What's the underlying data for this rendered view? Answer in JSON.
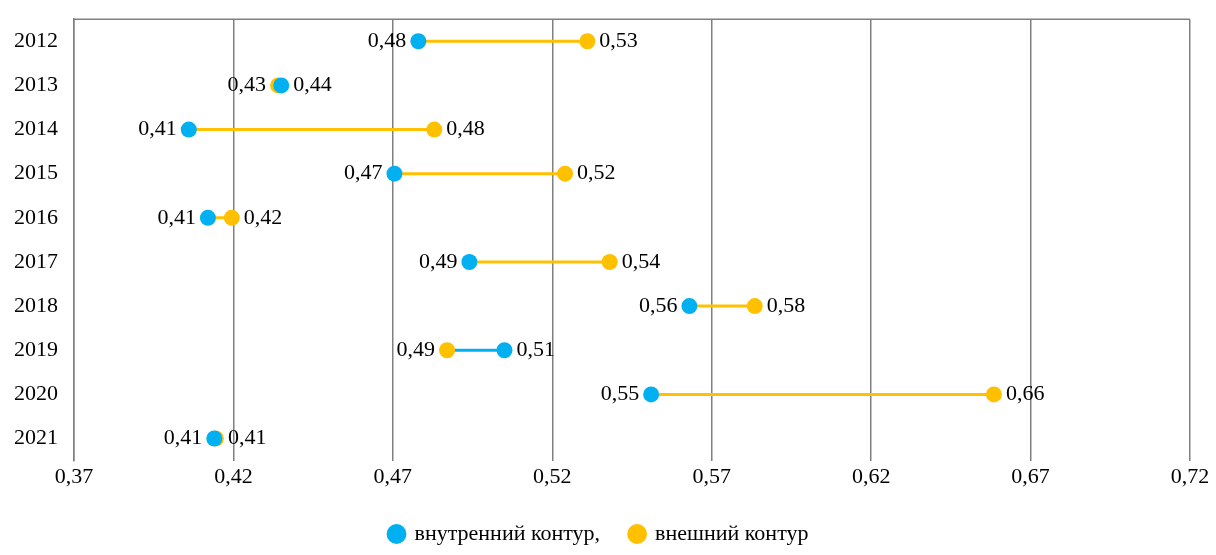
{
  "chart_data": {
    "type": "scatter",
    "orientation": "horizontal",
    "categories": [
      "2012",
      "2013",
      "2014",
      "2015",
      "2016",
      "2017",
      "2018",
      "2019",
      "2020",
      "2021"
    ],
    "series": [
      {
        "name": "внутренний контур,",
        "color": "#00b0f0",
        "values": [
          0.478,
          0.435,
          0.406,
          0.4705,
          0.412,
          0.494,
          0.563,
          0.505,
          0.551,
          0.414
        ],
        "value_labels": [
          "0,48",
          "0,44",
          "0,41",
          "0,47",
          "0,41",
          "0,49",
          "0,56",
          "0,51",
          "0,55",
          "0,41"
        ]
      },
      {
        "name": "внешний контур",
        "color": "#ffc000",
        "values": [
          0.531,
          0.434,
          0.483,
          0.524,
          0.4195,
          0.538,
          0.5835,
          0.487,
          0.6585,
          0.4145
        ],
        "value_labels": [
          "0,53",
          "0,43",
          "0,48",
          "0,52",
          "0,42",
          "0,54",
          "0,58",
          "0,49",
          "0,66",
          "0,41"
        ]
      }
    ],
    "xlim": [
      0.37,
      0.72
    ],
    "xticks": [
      {
        "value": 0.37,
        "label": "0,37"
      },
      {
        "value": 0.42,
        "label": "0,42"
      },
      {
        "value": 0.47,
        "label": "0,47"
      },
      {
        "value": 0.52,
        "label": "0,52"
      },
      {
        "value": 0.57,
        "label": "0,57"
      },
      {
        "value": 0.62,
        "label": "0,62"
      },
      {
        "value": 0.67,
        "label": "0,67"
      },
      {
        "value": 0.72,
        "label": "0,72"
      }
    ],
    "grid": "x",
    "legend": "bottom",
    "marker": "circle"
  }
}
